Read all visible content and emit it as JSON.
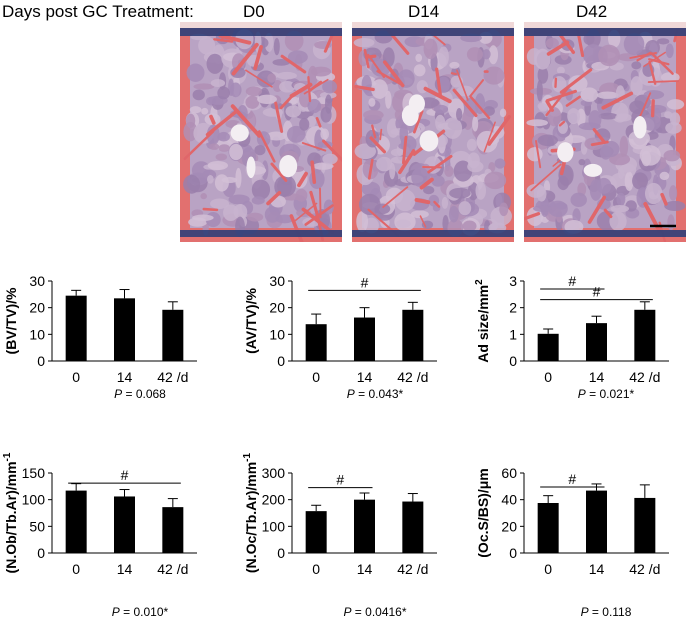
{
  "header": {
    "label": "Days post GC Treatment:",
    "panels": [
      "D0",
      "D14",
      "D42"
    ]
  },
  "chart_data": [
    {
      "type": "bar",
      "ylabel": "(BV/TV)/%",
      "ylim": [
        0,
        30
      ],
      "yticks": [
        0,
        10,
        20,
        30
      ],
      "categories": [
        "0",
        "14",
        "42 /d"
      ],
      "values": [
        24.5,
        23.5,
        19.2
      ],
      "errors": [
        2.0,
        3.3,
        3.0
      ],
      "p_prefix": "P",
      "p_value": " = 0.068",
      "significance": []
    },
    {
      "type": "bar",
      "ylabel": "(AV/TV)/%",
      "ylim": [
        0,
        30
      ],
      "yticks": [
        0,
        10,
        20,
        30
      ],
      "categories": [
        "0",
        "14",
        "42 /d"
      ],
      "values": [
        13.8,
        16.3,
        19.2
      ],
      "errors": [
        3.8,
        3.7,
        2.8
      ],
      "p_prefix": "P",
      "p_value": " = 0.043*",
      "significance": [
        {
          "from": 0,
          "to": 2,
          "level": 26.5,
          "mark": "#"
        }
      ]
    },
    {
      "type": "bar",
      "ylabel": "Ad size/mm",
      "ylabel_sup": "2",
      "ylim": [
        0,
        3
      ],
      "yticks": [
        0,
        1,
        2,
        3
      ],
      "categories": [
        "0",
        "14",
        "42 /d"
      ],
      "values": [
        1.02,
        1.42,
        1.92
      ],
      "errors": [
        0.18,
        0.26,
        0.3
      ],
      "p_prefix": "P",
      "p_value": " = 0.021*",
      "significance": [
        {
          "from": 0,
          "to": 1,
          "level": 2.7,
          "mark": "#"
        },
        {
          "from": 0,
          "to": 2,
          "level": 2.3,
          "mark": "#"
        }
      ]
    },
    {
      "type": "bar",
      "ylabel": "(N.Ob/Tb.Ar)/mm",
      "ylabel_sup": "-1",
      "ylim": [
        0,
        150
      ],
      "yticks": [
        0,
        50,
        100,
        150
      ],
      "categories": [
        "0",
        "14",
        "42 /d"
      ],
      "values": [
        117,
        106,
        86
      ],
      "errors": [
        13,
        13,
        16
      ],
      "p_prefix": "P",
      "p_value": " = 0.010*",
      "significance": [
        {
          "from": 0,
          "to": 2,
          "level": 131,
          "mark": "#"
        }
      ]
    },
    {
      "type": "bar",
      "ylabel": "(N.Oc/Tb.Ar)/mm",
      "ylabel_sup": "-1",
      "ylim": [
        0,
        300
      ],
      "yticks": [
        0,
        100,
        200,
        300
      ],
      "categories": [
        "0",
        "14",
        "42 /d"
      ],
      "values": [
        157,
        200,
        193
      ],
      "errors": [
        22,
        25,
        30
      ],
      "p_prefix": "P",
      "p_value": " = 0.0416*",
      "significance": [
        {
          "from": 0,
          "to": 1,
          "level": 245,
          "mark": "#"
        }
      ]
    },
    {
      "type": "bar",
      "ylabel": "(Oc.S/BS)/μm",
      "ylim": [
        0,
        60
      ],
      "yticks": [
        0,
        20,
        40,
        60
      ],
      "categories": [
        "0",
        "14",
        "42 /d"
      ],
      "values": [
        37.5,
        46.8,
        41.3
      ],
      "errors": [
        5.5,
        5.0,
        9.8
      ],
      "p_prefix": "P",
      "p_value": " = 0.118",
      "significance": [
        {
          "from": 0,
          "to": 1,
          "level": 49.5,
          "mark": "#"
        }
      ]
    }
  ]
}
